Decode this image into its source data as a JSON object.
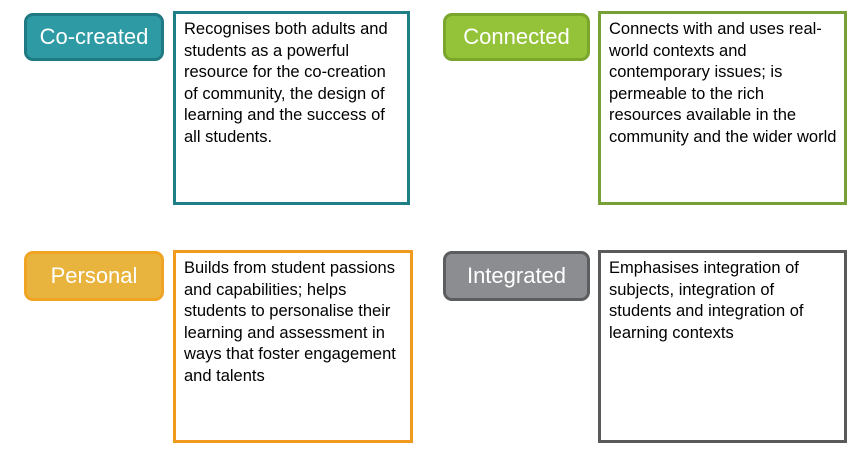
{
  "items": [
    {
      "label": "Co-created",
      "description": "Recognises both adults and students as a powerful resource for the co-creation of community, the design of learning and the success of all students.",
      "tag_color": "#2e9aa4",
      "border_color": "#1f7f87"
    },
    {
      "label": "Connected",
      "description": "Connects with and uses real-world contexts and contemporary issues; is permeable to the rich resources available in the community and the wider world",
      "tag_color": "#94c33a",
      "border_color": "#77a136"
    },
    {
      "label": "Personal",
      "description": "Builds from student passions and capabilities; helps students to personalise their learning and assessment in ways that foster engagement and talents",
      "tag_color": "#e9b43e",
      "border_color": "#f29a1f"
    },
    {
      "label": "Integrated",
      "description": "Emphasises integration of subjects, integration of students and integration of learning contexts",
      "tag_color": "#8c8d90",
      "border_color": "#5a5a5a"
    }
  ]
}
